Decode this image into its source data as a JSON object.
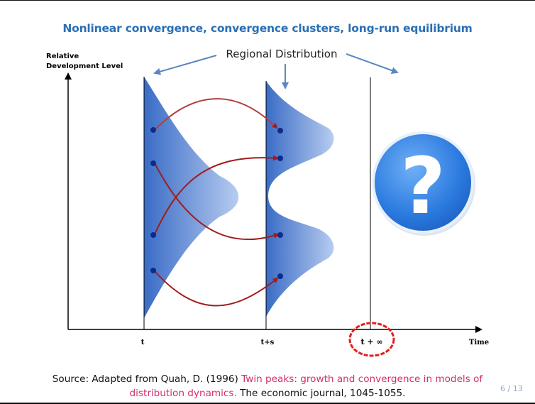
{
  "slide": {
    "title": "Nonlinear convergence, convergence clusters, long-run equilibrium",
    "page_number": "6 / 13"
  },
  "diagram": {
    "y_axis_label_line1": "Relative",
    "y_axis_label_line2": "Development Level",
    "top_label": "Regional Distribution",
    "x_labels": {
      "t": "t",
      "t_plus_s": "t+s",
      "t_inf": "t + ∞",
      "time": "Time"
    },
    "question_mark": "?",
    "colors": {
      "distribution_blue": "#3f72c8",
      "arrow_red": "#a01c1c",
      "arrow_blue": "#5b86c2",
      "highlight_circle": "#e02020",
      "question_bg": "#2f7fe0",
      "dot": "#0d2b8a"
    }
  },
  "source": {
    "prefix": "Source: Adapted from Quah, D. (1996) ",
    "title_line1": "Twin peaks: growth and convergence in models of",
    "title_line2": "distribution dynamics.",
    "suffix": " The economic journal, 1045-1055."
  }
}
